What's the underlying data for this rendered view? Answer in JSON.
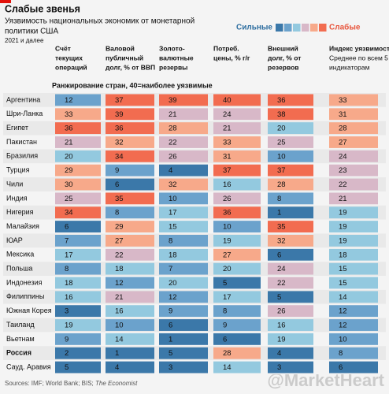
{
  "chart_data": {
    "type": "heatmap",
    "title": "Слабые звенья",
    "subtitle_lines": [
      "Уязвимость национальных экономик от монетарной",
      "политики США"
    ],
    "note": "2021 и далее",
    "legend": {
      "low": "Сильные",
      "high": "Слабые",
      "colors": [
        "#3b78a9",
        "#6ba2cc",
        "#93c9df",
        "#d8b8c8",
        "#f7a98a",
        "#f26c50"
      ]
    },
    "columns": [
      {
        "lines": [
          "Счёт",
          "текущих",
          "операций"
        ]
      },
      {
        "lines": [
          "Валовой",
          "публичный",
          "долг, % от ВВП"
        ]
      },
      {
        "lines": [
          "Золото-",
          "валютные",
          "резервы"
        ]
      },
      {
        "lines": [
          "Потреб.",
          "цены, % г/г"
        ]
      },
      {
        "lines": [
          "Внешний",
          "долг, % от",
          "резервов"
        ]
      },
      {
        "lines": [
          "Индекс уязвимости"
        ],
        "sub": [
          "Среднее по всем 5",
          "индикаторам"
        ]
      }
    ],
    "ranking_label": "Ранжирование стран, 40=наиболее уязвимые",
    "rows": [
      {
        "country": "Аргентина",
        "values": [
          12,
          37,
          39,
          40,
          36,
          33
        ]
      },
      {
        "country": "Шри-Ланка",
        "values": [
          33,
          39,
          21,
          24,
          38,
          31
        ]
      },
      {
        "country": "Египет",
        "values": [
          36,
          36,
          28,
          21,
          20,
          28
        ]
      },
      {
        "country": "Пакистан",
        "values": [
          21,
          32,
          22,
          33,
          25,
          27
        ]
      },
      {
        "country": "Бразилия",
        "values": [
          20,
          34,
          26,
          31,
          10,
          24
        ]
      },
      {
        "country": "Турция",
        "values": [
          29,
          9,
          4,
          37,
          37,
          23
        ]
      },
      {
        "country": "Чили",
        "values": [
          30,
          6,
          32,
          16,
          28,
          22
        ]
      },
      {
        "country": "Индия",
        "values": [
          25,
          35,
          10,
          26,
          8,
          21
        ]
      },
      {
        "country": "Нигерия",
        "values": [
          34,
          8,
          17,
          36,
          1,
          19
        ]
      },
      {
        "country": "Малайзия",
        "values": [
          6,
          29,
          15,
          10,
          35,
          19
        ]
      },
      {
        "country": "ЮАР",
        "values": [
          7,
          27,
          8,
          19,
          32,
          19
        ]
      },
      {
        "country": "Мексика",
        "values": [
          17,
          22,
          18,
          27,
          6,
          18
        ]
      },
      {
        "country": "Польша",
        "values": [
          8,
          18,
          7,
          20,
          24,
          15
        ]
      },
      {
        "country": "Индонезия",
        "values": [
          18,
          12,
          20,
          5,
          22,
          15
        ]
      },
      {
        "country": "Филиппины",
        "values": [
          16,
          21,
          12,
          17,
          5,
          14
        ]
      },
      {
        "country": "Южная Корея",
        "values": [
          3,
          16,
          9,
          8,
          26,
          12
        ]
      },
      {
        "country": "Таиланд",
        "values": [
          19,
          10,
          6,
          9,
          16,
          12
        ]
      },
      {
        "country": "Вьетнам",
        "values": [
          9,
          14,
          1,
          6,
          19,
          10
        ]
      },
      {
        "country": "Россия",
        "values": [
          2,
          1,
          5,
          28,
          4,
          8
        ],
        "bold": true
      },
      {
        "country": "Сауд. Аравия",
        "values": [
          5,
          4,
          3,
          14,
          3,
          6
        ]
      }
    ],
    "source": {
      "text": "Sources: IMF; World Bank; BIS; ",
      "italic": "The Economist"
    },
    "watermark": "@MarketHeart"
  }
}
